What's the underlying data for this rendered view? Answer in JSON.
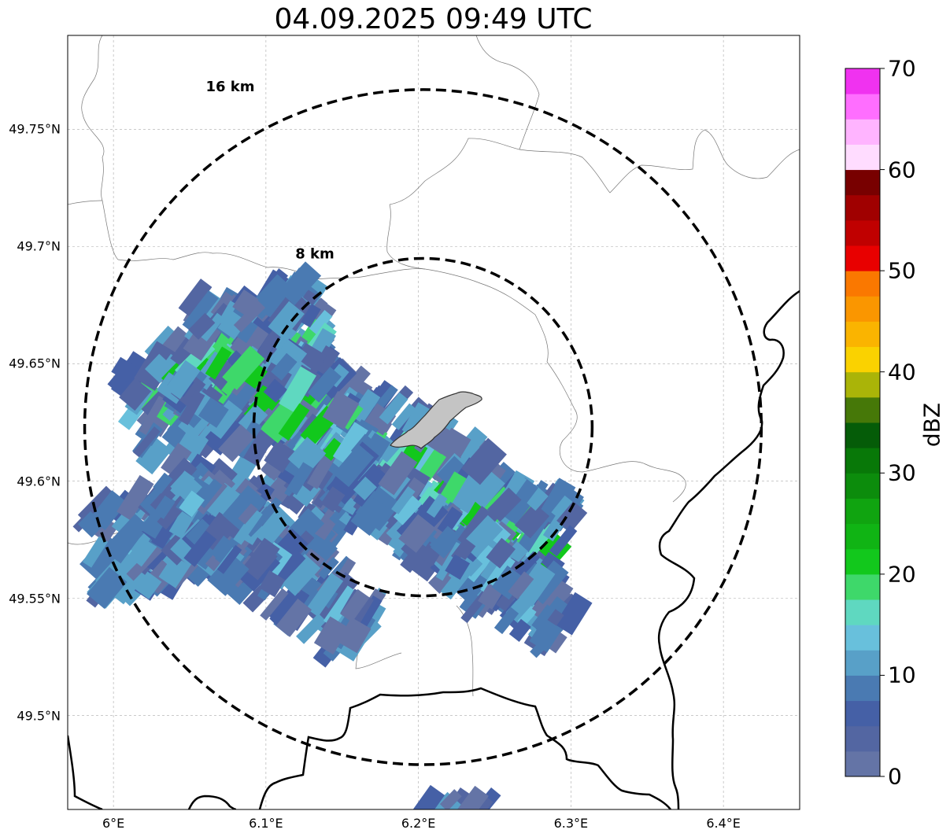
{
  "title": "04.09.2025 09:49 UTC",
  "map": {
    "extent": {
      "lon_min": 5.97,
      "lon_max": 6.45,
      "lat_min": 49.46,
      "lat_max": 49.79
    },
    "center": {
      "lon": 6.203,
      "lat": 49.623
    },
    "x_ticks": [
      {
        "lon": 6.0,
        "label": "6°E"
      },
      {
        "lon": 6.1,
        "label": "6.1°E"
      },
      {
        "lon": 6.2,
        "label": "6.2°E"
      },
      {
        "lon": 6.3,
        "label": "6.3°E"
      },
      {
        "lon": 6.4,
        "label": "6.4°E"
      }
    ],
    "y_ticks": [
      {
        "lat": 49.75,
        "label": "49.75°N"
      },
      {
        "lat": 49.7,
        "label": "49.7°N"
      },
      {
        "lat": 49.65,
        "label": "49.65°N"
      },
      {
        "lat": 49.6,
        "label": "49.6°N"
      },
      {
        "lat": 49.55,
        "label": "49.55°N"
      },
      {
        "lat": 49.5,
        "label": "49.5°N"
      }
    ],
    "range_rings": [
      {
        "radius_km": 16,
        "label": "16 km"
      },
      {
        "radius_km": 8,
        "label": "8 km"
      }
    ],
    "gridlines": true
  },
  "colorbar": {
    "label": "dBZ",
    "min": 0,
    "max": 70,
    "step": 2.5,
    "tick_labels": [
      "0",
      "10",
      "20",
      "30",
      "40",
      "50",
      "60",
      "70"
    ],
    "colors": [
      "#6474a6",
      "#5366a2",
      "#4560a6",
      "#4a7ab2",
      "#58a0c8",
      "#68c0dc",
      "#5fd8c0",
      "#3ed86a",
      "#12c81c",
      "#10b414",
      "#10a410",
      "#0c8c0c",
      "#087808",
      "#055c08",
      "#467808",
      "#aab408",
      "#fad200",
      "#fab400",
      "#fa9600",
      "#fa7800",
      "#e80000",
      "#c00000",
      "#a00000",
      "#780000",
      "#ffdcff",
      "#ffb4ff",
      "#ff6eff",
      "#f032f0"
    ]
  }
}
